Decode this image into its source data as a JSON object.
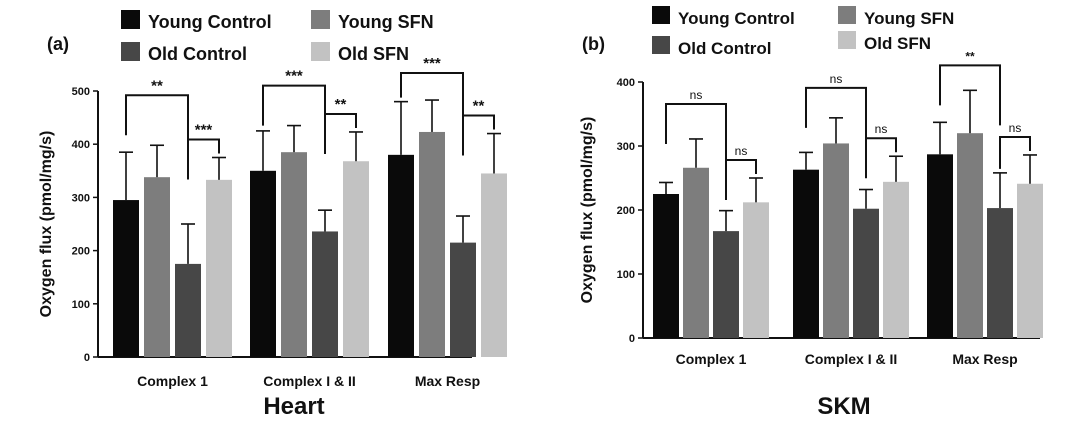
{
  "colors": {
    "Young Control": "#0a0a0a",
    "Young SFN": "#7d7d7d",
    "Old Control": "#474747",
    "Old SFN": "#c2c2c2"
  },
  "chart_data": [
    {
      "panel_label": "(a)",
      "type": "bar",
      "title": "Heart",
      "ylabel": "Oxygen flux (pmol/mg/s)",
      "xlabel": "",
      "ylim": [
        0,
        500
      ],
      "yticks": [
        0,
        100,
        200,
        300,
        400,
        500
      ],
      "categories": [
        "Complex 1",
        "Complex I & II",
        "Max Resp"
      ],
      "legend": [
        "Young Control",
        "Young SFN",
        "Old Control",
        "Old SFN"
      ],
      "series": [
        {
          "name": "Young Control",
          "values": [
            295,
            350,
            380
          ],
          "errors": [
            90,
            75,
            100
          ]
        },
        {
          "name": "Young SFN",
          "values": [
            338,
            385,
            423
          ],
          "errors": [
            60,
            50,
            60
          ]
        },
        {
          "name": "Old Control",
          "values": [
            175,
            236,
            215
          ],
          "errors": [
            75,
            40,
            50
          ]
        },
        {
          "name": "Old SFN",
          "values": [
            333,
            368,
            345
          ],
          "errors": [
            42,
            55,
            75
          ]
        }
      ],
      "annotations": [
        {
          "category": 0,
          "from": "Young Control",
          "to": "Old Control",
          "label": "**"
        },
        {
          "category": 0,
          "from": "Old Control",
          "to": "Old SFN",
          "label": "***"
        },
        {
          "category": 1,
          "from": "Young Control",
          "to": "Old Control",
          "label": "***"
        },
        {
          "category": 1,
          "from": "Old Control",
          "to": "Old SFN",
          "label": "**"
        },
        {
          "category": 2,
          "from": "Young Control",
          "to": "Old Control",
          "label": "***"
        },
        {
          "category": 2,
          "from": "Old Control",
          "to": "Old SFN",
          "label": "**"
        }
      ]
    },
    {
      "panel_label": "(b)",
      "type": "bar",
      "title": "SKM",
      "ylabel": "Oxygen flux (pmol/mg/s)",
      "xlabel": "",
      "ylim": [
        0,
        400
      ],
      "yticks": [
        0,
        100,
        200,
        300,
        400
      ],
      "categories": [
        "Complex 1",
        "Complex I & II",
        "Max Resp"
      ],
      "legend": [
        "Young Control",
        "Young SFN",
        "Old Control",
        "Old SFN"
      ],
      "series": [
        {
          "name": "Young Control",
          "values": [
            225,
            263,
            287
          ],
          "errors": [
            18,
            27,
            50
          ]
        },
        {
          "name": "Young SFN",
          "values": [
            266,
            304,
            320
          ],
          "errors": [
            45,
            40,
            67
          ]
        },
        {
          "name": "Old Control",
          "values": [
            167,
            202,
            203
          ],
          "errors": [
            32,
            30,
            55
          ]
        },
        {
          "name": "Old SFN",
          "values": [
            212,
            244,
            241
          ],
          "errors": [
            38,
            40,
            45
          ]
        }
      ],
      "annotations": [
        {
          "category": 0,
          "from": "Young Control",
          "to": "Old Control",
          "label": "ns"
        },
        {
          "category": 0,
          "from": "Old Control",
          "to": "Old SFN",
          "label": "ns"
        },
        {
          "category": 1,
          "from": "Young Control",
          "to": "Old Control",
          "label": "ns"
        },
        {
          "category": 1,
          "from": "Old Control",
          "to": "Old SFN",
          "label": "ns"
        },
        {
          "category": 2,
          "from": "Young Control",
          "to": "Old Control",
          "label": "**"
        },
        {
          "category": 2,
          "from": "Old Control",
          "to": "Old SFN",
          "label": "ns"
        }
      ]
    }
  ]
}
